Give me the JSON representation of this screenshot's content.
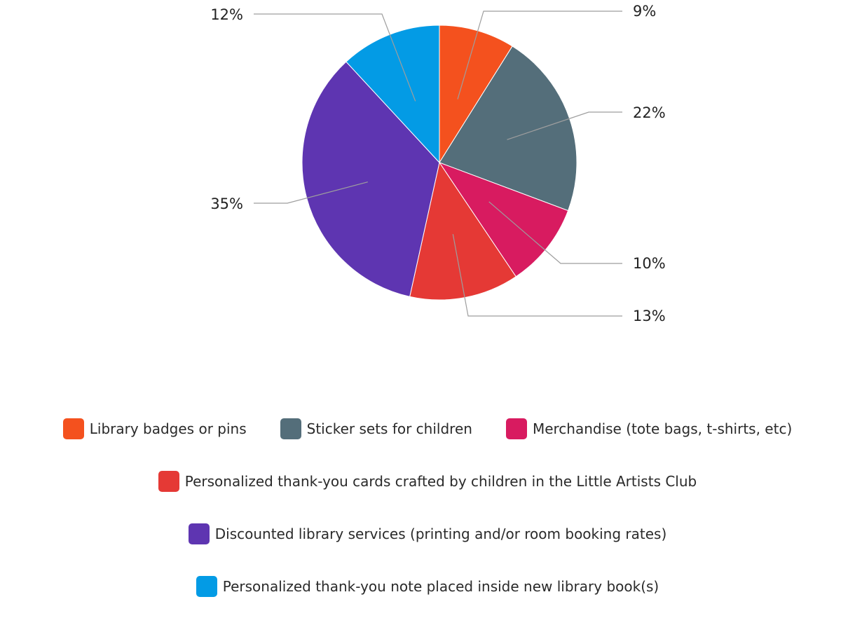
{
  "chart_data": {
    "type": "pie",
    "title": "",
    "slices": [
      {
        "label": "Library badges or pins",
        "value": 9,
        "value_label": "9%",
        "color": "#F4511E"
      },
      {
        "label": "Sticker sets for children",
        "value": 22,
        "value_label": "22%",
        "color": "#546E7A"
      },
      {
        "label": "Merchandise (tote bags, t-shirts, etc)",
        "value": 10,
        "value_label": "10%",
        "color": "#D81B60"
      },
      {
        "label": "Personalized thank-you cards crafted by children in the Little Artists Club",
        "value": 13,
        "value_label": "13%",
        "color": "#E53935"
      },
      {
        "label": "Discounted library services (printing and/or room booking rates)",
        "value": 35,
        "value_label": "35%",
        "color": "#5E35B1"
      },
      {
        "label": "Personalized thank-you note placed inside new library book(s)",
        "value": 12,
        "value_label": "12%",
        "color": "#039BE5"
      }
    ],
    "legend_position": "bottom",
    "leader_line_color": "#9e9e9e"
  },
  "legend": {
    "rows": [
      [
        0,
        1,
        2
      ],
      [
        3
      ],
      [
        4
      ],
      [
        5
      ]
    ]
  }
}
